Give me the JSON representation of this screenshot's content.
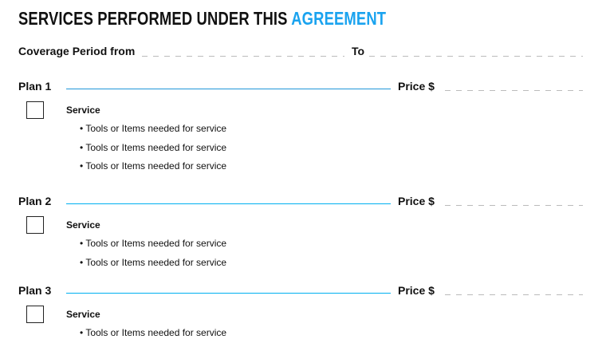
{
  "title": {
    "main": "SERVICES PERFORMED UNDER THIS",
    "accent": "AGREEMENT"
  },
  "coverage": {
    "from_label": "Coverage Period from",
    "to_label": "To",
    "from_value": "",
    "to_value": ""
  },
  "colors": {
    "accent": "#1aa3ef",
    "plan1_line": "#2196d8",
    "plan_line": "#00b0f0"
  },
  "plans": [
    {
      "label": "Plan 1",
      "price_label": "Price $",
      "service": "Service",
      "checked": false,
      "items": [
        "• Tools or Items needed for service",
        "• Tools or Items needed for service",
        "• Tools or Items needed for service"
      ]
    },
    {
      "label": "Plan 2",
      "price_label": "Price $",
      "service": "Service",
      "checked": false,
      "items": [
        "• Tools or Items needed for service",
        "• Tools or Items needed for service"
      ]
    },
    {
      "label": "Plan 3",
      "price_label": "Price $",
      "service": "Service",
      "checked": false,
      "items": [
        "• Tools or Items needed for service"
      ]
    }
  ]
}
